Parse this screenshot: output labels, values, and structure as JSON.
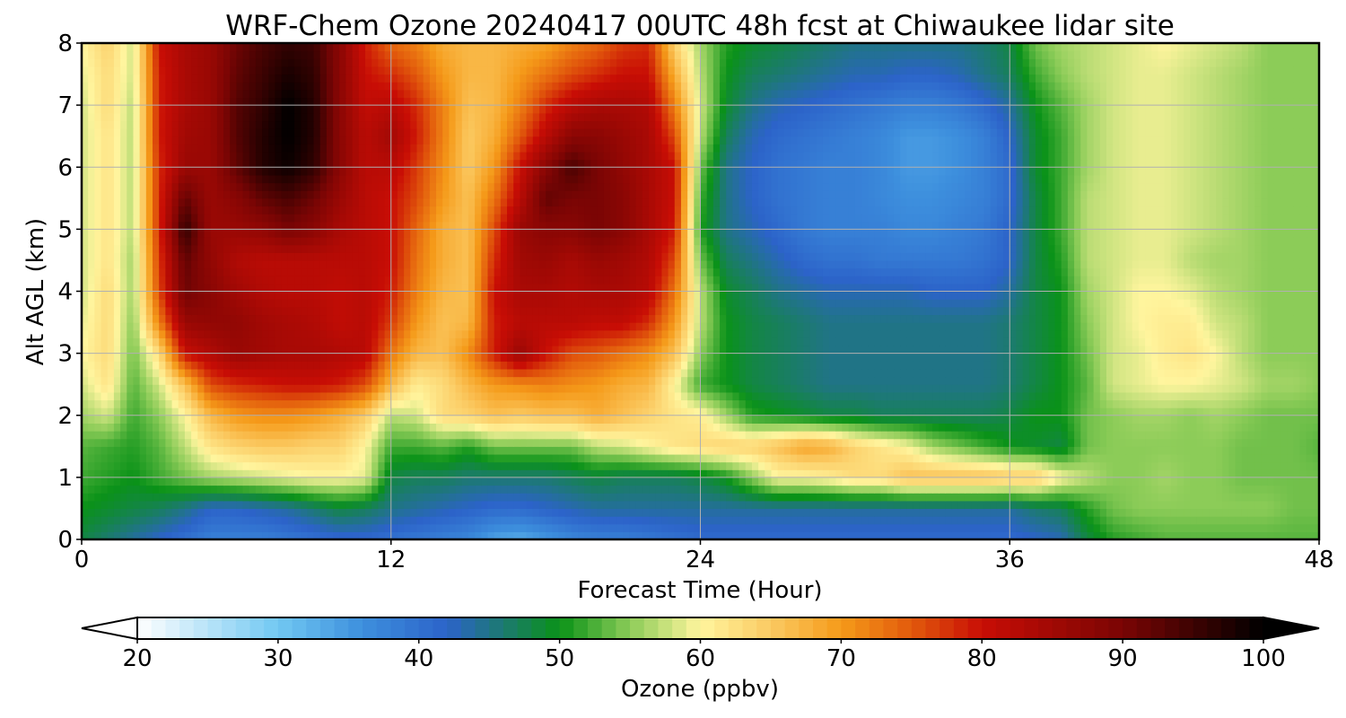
{
  "chart_data": {
    "type": "heatmap",
    "title": "WRF-Chem Ozone  20240417 00UTC 48h fcst at Chiwaukee lidar site",
    "xlabel": "Forecast Time (Hour)",
    "ylabel": "Alt AGL (km)",
    "xlim": [
      0,
      48
    ],
    "ylim": [
      0,
      8
    ],
    "x_ticks": [
      0,
      12,
      24,
      36,
      48
    ],
    "y_ticks": [
      0,
      1,
      2,
      3,
      4,
      5,
      6,
      7,
      8
    ],
    "grid": true,
    "x": [
      0,
      1,
      2,
      3,
      4,
      5,
      6,
      7,
      8,
      9,
      10,
      11,
      12,
      13,
      14,
      15,
      16,
      17,
      18,
      19,
      20,
      21,
      22,
      23,
      24,
      25,
      26,
      27,
      28,
      29,
      30,
      31,
      32,
      33,
      34,
      35,
      36,
      37,
      38,
      39,
      40,
      41,
      42,
      43,
      44,
      45,
      46,
      47,
      48
    ],
    "y": [
      0,
      0.5,
      1,
      1.5,
      2,
      2.5,
      3,
      3.5,
      4,
      4.5,
      5,
      5.5,
      6,
      6.5,
      7,
      7.5,
      8
    ],
    "z_description": "ozone mixing ratio (ppbv) on rows by altitude (y) and columns by forecast hour (x)",
    "z": [
      [
        48,
        46,
        44,
        42,
        40,
        38,
        38,
        38,
        39,
        40,
        41,
        41,
        40,
        39,
        38,
        37,
        34,
        33,
        35,
        37,
        38,
        38,
        39,
        40,
        41,
        41,
        41,
        41,
        41,
        41,
        41,
        41,
        41,
        41,
        41,
        41,
        41,
        42,
        43,
        48,
        51,
        52,
        53,
        53,
        53,
        53,
        53,
        53,
        53
      ],
      [
        50,
        49,
        48,
        47,
        45,
        42,
        42,
        43,
        44,
        46,
        48,
        47,
        45,
        44,
        43,
        42,
        41,
        41,
        42,
        43,
        44,
        44,
        44,
        44,
        44,
        44,
        44,
        44,
        44,
        44,
        44,
        44,
        44,
        44,
        44,
        44,
        44,
        46,
        47,
        51,
        54,
        55,
        55,
        55,
        55,
        55,
        55,
        54,
        54
      ],
      [
        52,
        51,
        50,
        52,
        54,
        56,
        57,
        58,
        59,
        60,
        60,
        59,
        48,
        47,
        47,
        46,
        46,
        46,
        46,
        47,
        48,
        47,
        47,
        47,
        48,
        50,
        55,
        60,
        60,
        61,
        63,
        63,
        66,
        66,
        66,
        66,
        65,
        65,
        60,
        57,
        55,
        55,
        56,
        55,
        55,
        54,
        54,
        54,
        54
      ],
      [
        53,
        52,
        51,
        53,
        57,
        62,
        64,
        65,
        65,
        64,
        64,
        60,
        52,
        52,
        53,
        51,
        54,
        54,
        54,
        54,
        57,
        58,
        60,
        62,
        63,
        64,
        64,
        66,
        69,
        68,
        64,
        62,
        60,
        56,
        54,
        52,
        50,
        49,
        48,
        54,
        55,
        55,
        55,
        55,
        55,
        54,
        54,
        54,
        53
      ],
      [
        56,
        58,
        52,
        55,
        60,
        67,
        70,
        71,
        71,
        70,
        68,
        65,
        57,
        58,
        63,
        64,
        66,
        65,
        66,
        66,
        68,
        66,
        64,
        62,
        61,
        56,
        51,
        50,
        49,
        48,
        48,
        47,
        47,
        47,
        47,
        47,
        48,
        50,
        50,
        54,
        55,
        56,
        56,
        55,
        56,
        55,
        54,
        54,
        54
      ],
      [
        58,
        62,
        53,
        58,
        66,
        76,
        78,
        79,
        80,
        80,
        79,
        76,
        67,
        61,
        63,
        67,
        70,
        71,
        72,
        71,
        70,
        68,
        67,
        60,
        52,
        50,
        48,
        47,
        46,
        45,
        45,
        45,
        45,
        45,
        45,
        45,
        46,
        48,
        50,
        53,
        58,
        59,
        60,
        60,
        59,
        58,
        56,
        56,
        55
      ],
      [
        60,
        63,
        54,
        63,
        80,
        83,
        86,
        85,
        84,
        84,
        83,
        82,
        73,
        67,
        66,
        71,
        79,
        86,
        80,
        76,
        75,
        73,
        71,
        66,
        55,
        50,
        48,
        47,
        46,
        45,
        45,
        45,
        45,
        45,
        45,
        45,
        46,
        48,
        50,
        54,
        58,
        59,
        61,
        62,
        60,
        57,
        55,
        55,
        55
      ],
      [
        59,
        63,
        55,
        72,
        86,
        87,
        87,
        85,
        84,
        83,
        81,
        82,
        77,
        70,
        66,
        67,
        79,
        82,
        82,
        82,
        81,
        81,
        78,
        70,
        57,
        50,
        48,
        47,
        46,
        45,
        45,
        45,
        45,
        45,
        45,
        45,
        46,
        48,
        50,
        55,
        58,
        60,
        61,
        61,
        58,
        57,
        55,
        55,
        55
      ],
      [
        58,
        63,
        56,
        76,
        91,
        88,
        85,
        83,
        82,
        82,
        81,
        82,
        79,
        72,
        67,
        66,
        80,
        84,
        84,
        83,
        84,
        84,
        82,
        73,
        57,
        49,
        47,
        45,
        44,
        43,
        43,
        43,
        43,
        42,
        42,
        42,
        44,
        48,
        50,
        56,
        58,
        60,
        60,
        59,
        57,
        56,
        55,
        55,
        55
      ],
      [
        58,
        62,
        56,
        77,
        92,
        87,
        83,
        82,
        82,
        82,
        82,
        82,
        80,
        73,
        68,
        66,
        78,
        85,
        86,
        84,
        86,
        85,
        83,
        76,
        54,
        47,
        45,
        43,
        41,
        40,
        40,
        39,
        39,
        39,
        39,
        40,
        42,
        48,
        51,
        57,
        58,
        59,
        59,
        57,
        56,
        56,
        55,
        55,
        55
      ],
      [
        58,
        62,
        57,
        78,
        96,
        86,
        86,
        87,
        90,
        88,
        84,
        82,
        80,
        74,
        68,
        66,
        76,
        86,
        88,
        88,
        90,
        88,
        84,
        79,
        51,
        45,
        43,
        41,
        39,
        38,
        38,
        38,
        37,
        37,
        38,
        39,
        42,
        48,
        52,
        57,
        58,
        59,
        59,
        58,
        57,
        56,
        55,
        55,
        55
      ],
      [
        58,
        62,
        57,
        78,
        92,
        86,
        88,
        92,
        94,
        91,
        86,
        82,
        80,
        76,
        70,
        66,
        73,
        82,
        92,
        90,
        90,
        88,
        84,
        80,
        52,
        45,
        42,
        40,
        39,
        38,
        38,
        37,
        36,
        36,
        37,
        38,
        41,
        48,
        52,
        57,
        58,
        59,
        59,
        58,
        57,
        56,
        55,
        55,
        55
      ],
      [
        58,
        62,
        57,
        78,
        86,
        86,
        92,
        97,
        99,
        96,
        88,
        82,
        82,
        77,
        71,
        65,
        70,
        80,
        88,
        94,
        90,
        87,
        84,
        80,
        54,
        45,
        42,
        40,
        39,
        38,
        38,
        37,
        35,
        35,
        36,
        38,
        41,
        49,
        52,
        56,
        58,
        59,
        59,
        58,
        57,
        56,
        55,
        55,
        55
      ],
      [
        58,
        62,
        57,
        79,
        85,
        86,
        93,
        97,
        100,
        97,
        88,
        82,
        85,
        79,
        72,
        65,
        68,
        75,
        82,
        88,
        88,
        86,
        84,
        76,
        57,
        47,
        43,
        41,
        40,
        39,
        38,
        37,
        35,
        35,
        36,
        38,
        42,
        49,
        52,
        56,
        58,
        59,
        59,
        58,
        57,
        56,
        55,
        55,
        55
      ],
      [
        58,
        63,
        57,
        79,
        84,
        86,
        93,
        96,
        100,
        97,
        88,
        81,
        82,
        78,
        72,
        66,
        67,
        72,
        78,
        82,
        84,
        84,
        83,
        72,
        58,
        49,
        45,
        43,
        42,
        41,
        40,
        39,
        38,
        38,
        39,
        41,
        44,
        50,
        53,
        56,
        58,
        59,
        59,
        58,
        57,
        56,
        55,
        55,
        55
      ],
      [
        59,
        63,
        58,
        79,
        84,
        86,
        92,
        95,
        98,
        96,
        88,
        80,
        78,
        75,
        70,
        67,
        67,
        70,
        73,
        76,
        78,
        80,
        80,
        68,
        57,
        50,
        47,
        46,
        45,
        44,
        43,
        43,
        42,
        42,
        43,
        45,
        47,
        52,
        55,
        57,
        58,
        59,
        59,
        58,
        57,
        56,
        55,
        55,
        55
      ],
      [
        60,
        64,
        58,
        80,
        84,
        86,
        91,
        94,
        96,
        95,
        88,
        79,
        74,
        72,
        68,
        67,
        67,
        68,
        69,
        72,
        74,
        77,
        78,
        64,
        56,
        51,
        49,
        48,
        47,
        46,
        45,
        45,
        45,
        45,
        45,
        46,
        48,
        54,
        56,
        57,
        58,
        59,
        60,
        59,
        58,
        57,
        55,
        55,
        55
      ]
    ],
    "colorbar": {
      "label": "Ozone  (ppbv)",
      "min": 20,
      "max": 100,
      "ticks": [
        20,
        30,
        40,
        50,
        60,
        70,
        80,
        90,
        100
      ],
      "extend": "both",
      "orientation": "horizontal",
      "color_stops": [
        {
          "v": 20,
          "c": "#ffffff"
        },
        {
          "v": 30,
          "c": "#71c8f2"
        },
        {
          "v": 36,
          "c": "#3d8fdd"
        },
        {
          "v": 42,
          "c": "#2c63c9"
        },
        {
          "v": 46,
          "c": "#1c7a70"
        },
        {
          "v": 50,
          "c": "#0a9218"
        },
        {
          "v": 55,
          "c": "#8ccc58"
        },
        {
          "v": 60,
          "c": "#fff59e"
        },
        {
          "v": 65,
          "c": "#fbca62"
        },
        {
          "v": 70,
          "c": "#f59a19"
        },
        {
          "v": 75,
          "c": "#e25a0c"
        },
        {
          "v": 80,
          "c": "#c80d05"
        },
        {
          "v": 90,
          "c": "#7a0504"
        },
        {
          "v": 100,
          "c": "#000000"
        }
      ]
    }
  }
}
